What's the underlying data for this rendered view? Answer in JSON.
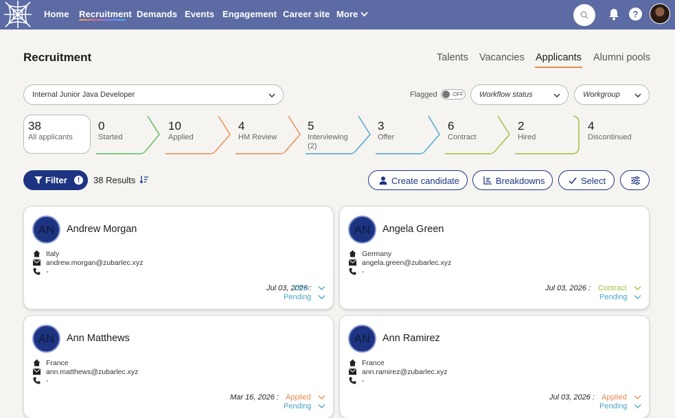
{
  "nav": {
    "items": [
      "Home",
      "Recruitment",
      "Demands",
      "Events",
      "Engagement",
      "Career site",
      "More"
    ],
    "help_label": "?"
  },
  "header": {
    "title": "Recruitment",
    "tabs": [
      "Talents",
      "Vacancies",
      "Applicants",
      "Alumni pools"
    ],
    "active_tab": "Applicants"
  },
  "controls": {
    "job": "Internal Junior Java Developer",
    "flagged_label": "Flagged",
    "flagged_state": "OFF",
    "workflow_placeholder": "Workflow status",
    "workgroup_placeholder": "Workgroup"
  },
  "pipeline": {
    "stages": [
      {
        "count": "38",
        "label": "All applicants",
        "color": "#9a9a9a"
      },
      {
        "count": "0",
        "label": "Started",
        "color": "#5fb85a"
      },
      {
        "count": "10",
        "label": "Applied",
        "color": "#e8894b"
      },
      {
        "count": "4",
        "label": "HM Review",
        "color": "#e8894b"
      },
      {
        "count": "5",
        "label": "Interviewing",
        "sub": "(2)",
        "color": "#4aa3c9"
      },
      {
        "count": "3",
        "label": "Offer",
        "color": "#4aa3c9"
      },
      {
        "count": "6",
        "label": "Contract",
        "color": "#9bbf3a"
      },
      {
        "count": "2",
        "label": "Hired",
        "color": "#9bbf3a"
      },
      {
        "count": "4",
        "label": "Discontinued",
        "color": "#b9b9b9"
      }
    ]
  },
  "toolbar": {
    "filter_label": "Filter",
    "filter_badge": "!",
    "results": "38 Results",
    "create_label": "Create candidate",
    "breakdowns_label": "Breakdowns",
    "select_label": "Select"
  },
  "candidates": [
    {
      "initials": "AN",
      "name": "Andrew Morgan",
      "country": "Italy",
      "email": "andrew.morgan@zubarlec.xyz",
      "phone": "-",
      "date": "Jul 03, 2026 :",
      "stage": "Offer",
      "stage_color": "#4aa3c9",
      "status": "Pending"
    },
    {
      "initials": "AN",
      "name": "Angela Green",
      "country": "Germany",
      "email": "angela.green@zubarlec.xyz",
      "phone": "-",
      "date": "Jul 03, 2026 :",
      "stage": "Contract",
      "stage_color": "#9bbf3a",
      "status": "Pending"
    },
    {
      "initials": "AN",
      "name": "Ann Matthews",
      "country": "France",
      "email": "ann.matthews@zubarlec.xyz",
      "phone": "-",
      "date": "Mar 16, 2026 :",
      "stage": "Applied",
      "stage_color": "#e8894b",
      "status": "Pending"
    },
    {
      "initials": "AN",
      "name": "Ann Ramirez",
      "country": "France",
      "email": "ann.ramirez@zubarlec.xyz",
      "phone": "-",
      "date": "Jul 03, 2026 :",
      "stage": "Applied",
      "stage_color": "#e8894b",
      "status": "Pending"
    }
  ]
}
